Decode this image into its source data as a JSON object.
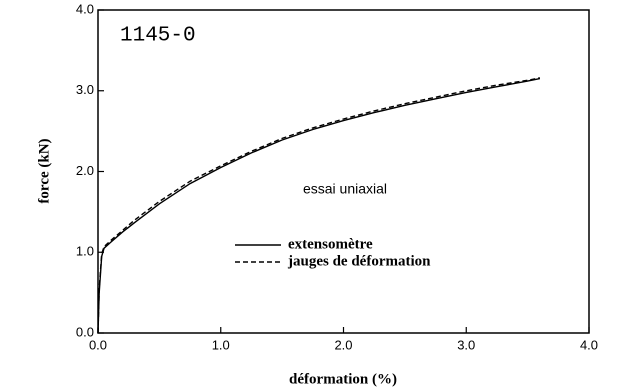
{
  "chart_data": {
    "type": "line",
    "annotations": [
      "1145-0",
      "essai uniaxial"
    ],
    "x_label": "déformation   (%)",
    "y_label": "force   (kN)",
    "xlim": [
      0,
      4
    ],
    "ylim": [
      0,
      4
    ],
    "xticks": [
      {
        "value": 0,
        "label": "0.0"
      },
      {
        "value": 1,
        "label": "1.0"
      },
      {
        "value": 2,
        "label": "2.0"
      },
      {
        "value": 3,
        "label": "3.0"
      },
      {
        "value": 4,
        "label": "4.0"
      }
    ],
    "yticks": [
      {
        "value": 0,
        "label": "0.0"
      },
      {
        "value": 1,
        "label": "1.0"
      },
      {
        "value": 2,
        "label": "2.0"
      },
      {
        "value": 3,
        "label": "3.0"
      },
      {
        "value": 4,
        "label": "4.0"
      }
    ],
    "x": [
      0,
      0.01,
      0.03,
      0.05,
      0.1,
      0.2,
      0.3,
      0.5,
      0.75,
      1.0,
      1.25,
      1.5,
      1.75,
      2.0,
      2.25,
      2.5,
      2.75,
      3.0,
      3.25,
      3.5,
      3.6
    ],
    "series": [
      {
        "name": "extensomètre",
        "color": "#000000",
        "line_style": "solid",
        "values": [
          0.0,
          0.5,
          0.95,
          1.05,
          1.12,
          1.25,
          1.37,
          1.6,
          1.85,
          2.05,
          2.23,
          2.39,
          2.52,
          2.63,
          2.73,
          2.82,
          2.9,
          2.98,
          3.05,
          3.12,
          3.15
        ]
      },
      {
        "name": "jauges de déformation",
        "color": "#000000",
        "line_style": "dashed",
        "values": [
          0.0,
          0.55,
          0.98,
          1.07,
          1.14,
          1.27,
          1.4,
          1.63,
          1.88,
          2.07,
          2.25,
          2.41,
          2.54,
          2.65,
          2.75,
          2.84,
          2.92,
          3.0,
          3.07,
          3.13,
          3.16
        ]
      }
    ],
    "legend": "center-left"
  }
}
